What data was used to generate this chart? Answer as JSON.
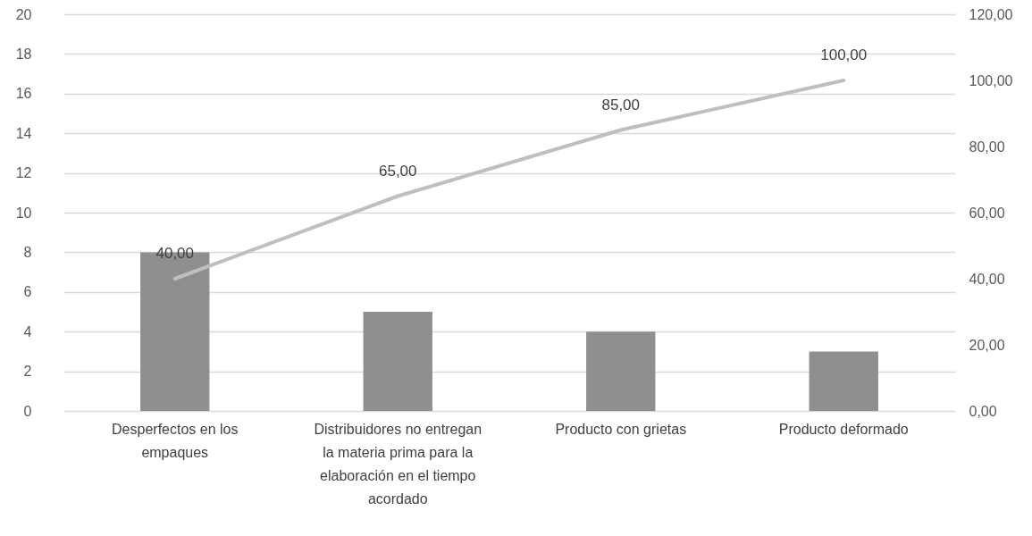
{
  "chart_data": {
    "type": "bar",
    "categories": [
      "Desperfectos en los empaques",
      "Distribuidores no entregan la materia prima para la elaboración en el tiempo acordado",
      "Producto con grietas",
      "Producto deformado"
    ],
    "series": [
      {
        "color": "#8f8f8f",
        "values": [
          8,
          5,
          4,
          3
        ]
      },
      {
        "type": "line",
        "axis": "y2",
        "color": "#bfbfbf",
        "values": [
          40,
          65,
          85,
          100
        ],
        "value_labels": [
          "40,00",
          "65,00",
          "85,00",
          "100,00"
        ]
      }
    ],
    "ylim": [
      0,
      20
    ],
    "yticks": [
      0,
      2,
      4,
      6,
      8,
      10,
      12,
      14,
      16,
      18,
      20
    ],
    "y2lim": [
      0,
      120
    ],
    "y2ticks": [
      {
        "value": 0,
        "label": "0,00"
      },
      {
        "value": 20,
        "label": "20,00"
      },
      {
        "value": 40,
        "label": "40,00"
      },
      {
        "value": 60,
        "label": "60,00"
      },
      {
        "value": 80,
        "label": "80,00"
      },
      {
        "value": 100,
        "label": "100,00"
      },
      {
        "value": 120,
        "label": "120,00"
      }
    ],
    "grid": "y",
    "marker": "none",
    "line_style": "solid"
  }
}
